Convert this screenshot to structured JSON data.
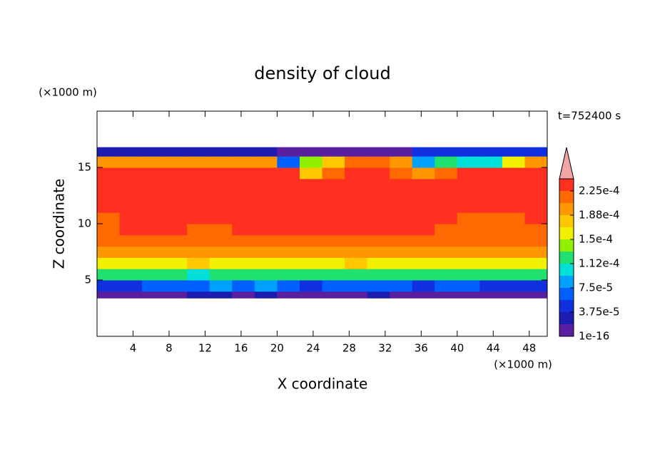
{
  "chart_data": {
    "type": "contour",
    "title": "density of cloud",
    "xlabel": "X coordinate",
    "ylabel": "Z coordinate",
    "x_unit": "(×1000 m)",
    "y_unit": "(×1000 m)",
    "time_label": "t=752400 s",
    "xlim": [
      0,
      50
    ],
    "ylim": [
      0,
      20
    ],
    "xticks": [
      4,
      8,
      12,
      16,
      20,
      24,
      28,
      32,
      36,
      40,
      44,
      48
    ],
    "yticks": [
      5,
      10,
      15
    ],
    "x_edges": [
      0,
      2.5,
      5,
      7.5,
      10,
      12.5,
      15,
      17.5,
      20,
      22.5,
      25,
      27.5,
      30,
      32.5,
      35,
      37.5,
      40,
      42.5,
      45,
      47.5,
      50
    ],
    "z_edges": [
      3.4,
      4,
      5,
      6,
      7,
      8,
      9,
      10,
      11,
      12,
      13,
      14,
      15,
      16,
      16.8
    ],
    "values": [
      [
        1.2e-05,
        1.2e-05,
        1.5e-05,
        1.5e-05,
        2.5e-05,
        2e-05,
        1.5e-05,
        2e-05,
        1.5e-05,
        1.2e-05,
        1.5e-05,
        1.5e-05,
        2e-05,
        1.5e-05,
        1.2e-05,
        1.5e-05,
        1.5e-05,
        1.2e-05,
        1.2e-05,
        1.2e-05
      ],
      [
        5.5e-05,
        5.5e-05,
        6e-05,
        6e-05,
        7e-05,
        8e-05,
        6e-05,
        8e-05,
        6e-05,
        5.5e-05,
        6e-05,
        7e-05,
        6e-05,
        6e-05,
        5.5e-05,
        6e-05,
        6e-05,
        5.5e-05,
        5.5e-05,
        5.5e-05
      ],
      [
        0.00012,
        0.00012,
        0.000115,
        0.00012,
        0.00011,
        0.00013,
        0.00012,
        0.000115,
        0.00012,
        0.00012,
        0.00012,
        0.000125,
        0.00012,
        0.00012,
        0.00012,
        0.00012,
        0.00012,
        0.00012,
        0.00012,
        0.00012
      ],
      [
        0.000165,
        0.000165,
        0.00016,
        0.00016,
        0.00017,
        0.00016,
        0.00016,
        0.000165,
        0.000165,
        0.000165,
        0.00016,
        0.00017,
        0.000165,
        0.000165,
        0.000165,
        0.000165,
        0.000165,
        0.000165,
        0.000165,
        0.000165
      ],
      [
        0.000195,
        0.000195,
        0.000195,
        0.000195,
        0.0002,
        0.000195,
        0.000195,
        0.000195,
        0.000195,
        0.0002,
        0.000195,
        0.0002,
        0.000195,
        0.000195,
        0.000195,
        0.000195,
        0.000195,
        0.000195,
        0.000195,
        0.000195
      ],
      [
        0.000215,
        0.000215,
        0.000215,
        0.000215,
        0.000215,
        0.000215,
        0.00022,
        0.000215,
        0.000215,
        0.000215,
        0.000215,
        0.000215,
        0.00022,
        0.000215,
        0.000215,
        0.000215,
        0.000215,
        0.000215,
        0.000215,
        0.000215
      ],
      [
        0.00022,
        0.000225,
        0.00023,
        0.00023,
        0.00022,
        0.00022,
        0.00023,
        0.00023,
        0.00023,
        0.00023,
        0.00023,
        0.00023,
        0.00023,
        0.00023,
        0.00023,
        0.00022,
        0.00022,
        0.00022,
        0.00022,
        0.00022
      ],
      [
        0.00022,
        0.00023,
        0.00023,
        0.00023,
        0.00023,
        0.00023,
        0.00023,
        0.00023,
        0.00023,
        0.00023,
        0.00023,
        0.00023,
        0.00023,
        0.00023,
        0.00023,
        0.00023,
        0.00022,
        0.00022,
        0.00022,
        0.00023
      ],
      [
        0.00023,
        0.00023,
        0.00023,
        0.00023,
        0.00023,
        0.00023,
        0.00023,
        0.00023,
        0.00023,
        0.00023,
        0.00023,
        0.00023,
        0.00023,
        0.00023,
        0.00023,
        0.00023,
        0.00023,
        0.00023,
        0.00023,
        0.00023
      ],
      [
        0.00023,
        0.00023,
        0.000235,
        0.000235,
        0.000235,
        0.00023,
        0.00023,
        0.000235,
        0.00023,
        0.00023,
        0.00023,
        0.00023,
        0.00023,
        0.00023,
        0.00023,
        0.00023,
        0.00023,
        0.00023,
        0.00023,
        0.00023
      ],
      [
        0.00023,
        0.00023,
        0.00023,
        0.000235,
        0.000235,
        0.000235,
        0.00023,
        0.00023,
        0.00023,
        0.00023,
        0.00023,
        0.00023,
        0.00023,
        0.00023,
        0.00023,
        0.00023,
        0.00023,
        0.00023,
        0.00023,
        0.00023
      ],
      [
        0.00023,
        0.00023,
        0.00023,
        0.00023,
        0.00023,
        0.00023,
        0.00023,
        0.00023,
        0.00023,
        0.00017,
        0.00022,
        0.00023,
        0.00023,
        0.00022,
        0.00019,
        0.00021,
        0.000225,
        0.000225,
        0.000225,
        0.000225
      ],
      [
        0.0002,
        0.0002,
        0.0002,
        0.0002,
        0.0002,
        0.0002,
        0.0002,
        0.00019,
        6e-05,
        0.00014,
        0.00018,
        0.00021,
        0.00021,
        0.00019,
        8e-05,
        0.00012,
        0.0001,
        0.00011,
        0.00016,
        0.00019
      ],
      [
        3e-05,
        3e-05,
        3e-05,
        3e-05,
        3e-05,
        3e-05,
        3e-05,
        3e-05,
        1.5e-05,
        1.5e-05,
        1.5e-05,
        1.5e-05,
        1.5e-05,
        1.5e-05,
        4e-05,
        4e-05,
        4e-05,
        4e-05,
        4e-05,
        4e-05
      ]
    ],
    "levels": [
      1e-16,
      1.875e-05,
      3.75e-05,
      5.625e-05,
      7.5e-05,
      9.375e-05,
      0.0001125,
      0.00013125,
      0.00015,
      0.00016875,
      0.0001875,
      0.00020625,
      0.000225,
      0.00024375
    ],
    "colors": [
      "#5a1fa0",
      "#1c1cb0",
      "#1030e0",
      "#0060ff",
      "#00a0ff",
      "#00e0d8",
      "#20e070",
      "#90f000",
      "#f0f000",
      "#ffc800",
      "#ff9800",
      "#ff6a00",
      "#ff3020",
      "#f4a4a4"
    ],
    "extend": "max",
    "colorbar_ticks": [
      1e-16,
      {
        "value": 3.75e-05,
        "label": "3.75e-5"
      },
      {
        "value": 7.5e-05,
        "label": "7.5e-5"
      },
      {
        "value": 0.0001125,
        "label": "1.12e-4"
      },
      {
        "value": 0.00015,
        "label": "1.5e-4"
      },
      {
        "value": 0.0001875,
        "label": "1.88e-4"
      },
      {
        "value": 0.000225,
        "label": "2.25e-4"
      }
    ]
  }
}
